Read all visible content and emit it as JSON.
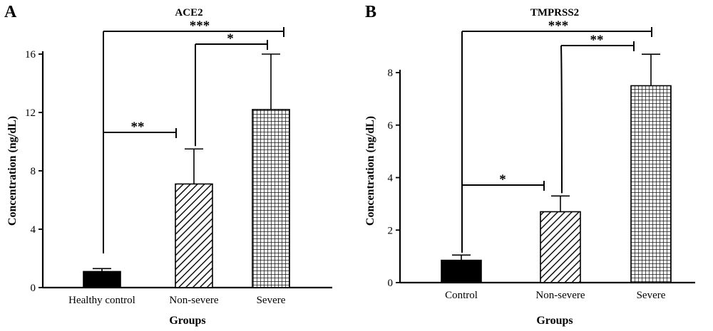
{
  "figure": {
    "panel_a_letter": "A",
    "panel_b_letter": "B"
  },
  "chart_data": [
    {
      "type": "bar",
      "title": "ACE2",
      "xlabel": "Groups",
      "ylabel": "Concentration (ng/dL)",
      "ylim": [
        0,
        16
      ],
      "yticks": [
        0,
        4,
        8,
        12,
        16
      ],
      "categories": [
        "Healthy control",
        "Non-severe",
        "Severe"
      ],
      "values": [
        1.1,
        7.1,
        12.2
      ],
      "errors": [
        0.2,
        2.4,
        3.8
      ],
      "patterns": [
        "solid",
        "diagonal",
        "grid"
      ],
      "significance": [
        {
          "from": 0,
          "to": 1,
          "label": "**"
        },
        {
          "from": 1,
          "to": 2,
          "label": "*"
        },
        {
          "from": 0,
          "to": 2,
          "label": "***"
        }
      ]
    },
    {
      "type": "bar",
      "title": "TMPRSS2",
      "xlabel": "Groups",
      "ylabel": "Concentration (ng/dL)",
      "ylim": [
        0,
        8
      ],
      "yticks": [
        0,
        2,
        4,
        6,
        8
      ],
      "categories": [
        "Control",
        "Non-severe",
        "Severe"
      ],
      "values": [
        0.85,
        2.7,
        7.5
      ],
      "errors": [
        0.2,
        0.6,
        1.2
      ],
      "patterns": [
        "solid",
        "diagonal",
        "grid"
      ],
      "significance": [
        {
          "from": 0,
          "to": 1,
          "label": "*"
        },
        {
          "from": 1,
          "to": 2,
          "label": "**"
        },
        {
          "from": 0,
          "to": 2,
          "label": "***"
        }
      ]
    }
  ]
}
